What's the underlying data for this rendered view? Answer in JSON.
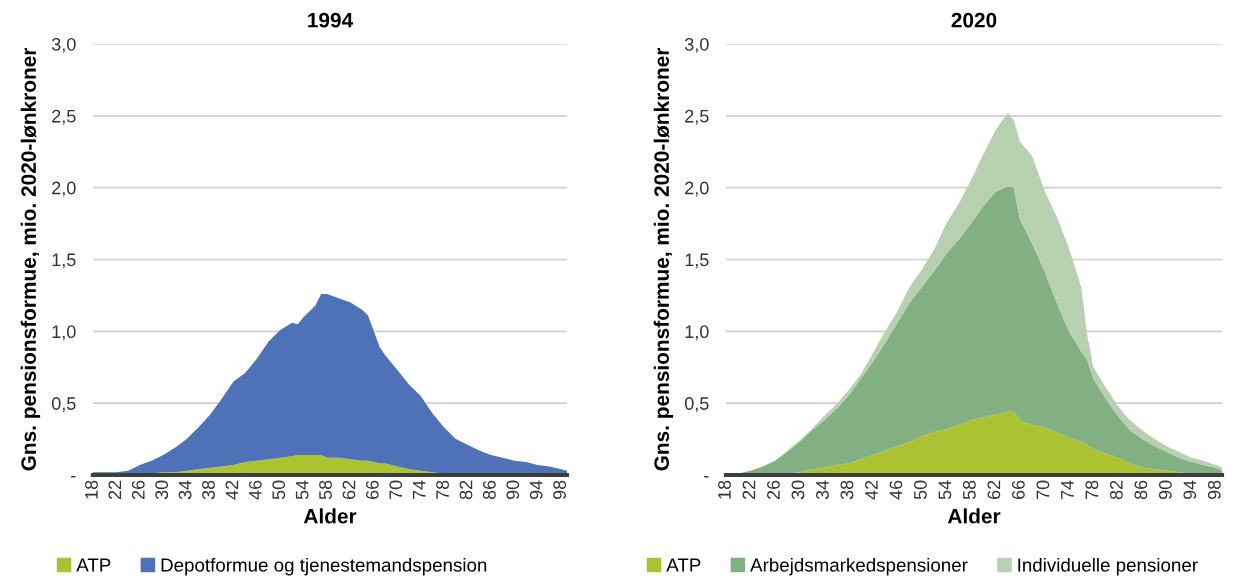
{
  "chart_data": [
    {
      "type": "area",
      "stacked": true,
      "title": "1994",
      "xlabel": "Alder",
      "ylabel": "Gns. pensionsformue, mio. 2020-lønkroner",
      "x": [
        18,
        20,
        22,
        24,
        26,
        28,
        30,
        32,
        34,
        36,
        38,
        40,
        42,
        44,
        46,
        48,
        50,
        52,
        53,
        54,
        56,
        57,
        58,
        60,
        62,
        64,
        65,
        66,
        67,
        68,
        70,
        72,
        74,
        76,
        78,
        80,
        82,
        84,
        86,
        88,
        90,
        92,
        94,
        96,
        98,
        99
      ],
      "series": [
        {
          "name": "ATP",
          "color": "#abc233",
          "values": [
            0,
            0,
            0,
            0,
            0.01,
            0.01,
            0.02,
            0.02,
            0.03,
            0.04,
            0.05,
            0.06,
            0.07,
            0.09,
            0.1,
            0.11,
            0.12,
            0.13,
            0.14,
            0.14,
            0.14,
            0.14,
            0.12,
            0.12,
            0.11,
            0.1,
            0.1,
            0.09,
            0.08,
            0.08,
            0.06,
            0.04,
            0.03,
            0.02,
            0.01,
            0.01,
            0,
            0,
            0,
            0,
            0,
            0,
            0,
            0,
            0,
            0
          ]
        },
        {
          "name": "Depotformue og tjenestemandspension",
          "color": "#4f71b8",
          "values": [
            0.02,
            0.02,
            0.02,
            0.03,
            0.06,
            0.09,
            0.12,
            0.17,
            0.22,
            0.29,
            0.37,
            0.47,
            0.58,
            0.62,
            0.71,
            0.82,
            0.89,
            0.93,
            0.91,
            0.96,
            1.04,
            1.12,
            1.14,
            1.11,
            1.09,
            1.05,
            1.01,
            0.91,
            0.81,
            0.75,
            0.67,
            0.59,
            0.52,
            0.41,
            0.32,
            0.24,
            0.21,
            0.17,
            0.14,
            0.12,
            0.1,
            0.09,
            0.07,
            0.06,
            0.04,
            0.03
          ]
        }
      ],
      "xlim": [
        18,
        99
      ],
      "xticks": [
        18,
        22,
        26,
        30,
        34,
        38,
        42,
        46,
        50,
        54,
        58,
        62,
        66,
        70,
        74,
        78,
        82,
        86,
        90,
        94,
        98
      ],
      "ylim": [
        0,
        3
      ],
      "yticks": [
        {
          "value": 0,
          "label": "-"
        },
        {
          "value": 0.5,
          "label": "0,5"
        },
        {
          "value": 1,
          "label": "1,0"
        },
        {
          "value": 1.5,
          "label": "1,5"
        },
        {
          "value": 2,
          "label": "2,0"
        },
        {
          "value": 2.5,
          "label": "2,5"
        },
        {
          "value": 3,
          "label": "3,0"
        }
      ],
      "grid": "y",
      "legend": "bottom"
    },
    {
      "type": "area",
      "stacked": true,
      "title": "2020",
      "xlabel": "Alder",
      "ylabel": "Gns. pensionsformue, mio. 2020-lønkroner",
      "x": [
        18,
        20,
        22,
        24,
        26,
        28,
        30,
        32,
        34,
        36,
        38,
        40,
        42,
        44,
        46,
        48,
        50,
        52,
        54,
        56,
        58,
        60,
        62,
        64,
        65,
        66,
        68,
        70,
        72,
        74,
        76,
        77,
        78,
        80,
        82,
        84,
        86,
        88,
        90,
        92,
        94,
        96,
        98,
        99
      ],
      "series": [
        {
          "name": "ATP",
          "color": "#abc233",
          "values": [
            0,
            0,
            0,
            0,
            0.01,
            0.01,
            0.02,
            0.04,
            0.05,
            0.07,
            0.08,
            0.11,
            0.14,
            0.17,
            0.2,
            0.23,
            0.27,
            0.3,
            0.32,
            0.35,
            0.38,
            0.4,
            0.42,
            0.44,
            0.44,
            0.38,
            0.35,
            0.33,
            0.3,
            0.26,
            0.23,
            0.21,
            0.18,
            0.15,
            0.12,
            0.08,
            0.05,
            0.04,
            0.03,
            0.02,
            0.01,
            0.01,
            0.01,
            0
          ]
        },
        {
          "name": "Arbejdsmarkedspensioner",
          "color": "#82b082",
          "values": [
            0.01,
            0.01,
            0.03,
            0.06,
            0.09,
            0.15,
            0.21,
            0.27,
            0.33,
            0.39,
            0.47,
            0.56,
            0.65,
            0.75,
            0.86,
            0.97,
            1.04,
            1.12,
            1.22,
            1.29,
            1.37,
            1.47,
            1.55,
            1.57,
            1.56,
            1.4,
            1.26,
            1.09,
            0.9,
            0.74,
            0.63,
            0.59,
            0.49,
            0.38,
            0.29,
            0.23,
            0.2,
            0.16,
            0.13,
            0.1,
            0.08,
            0.06,
            0.04,
            0.03
          ]
        },
        {
          "name": "Individuelle pensioner",
          "color": "#b7d1b0",
          "values": [
            0,
            0,
            0,
            0,
            0,
            0.01,
            0.01,
            0.01,
            0.03,
            0.03,
            0.04,
            0.03,
            0.06,
            0.08,
            0.08,
            0.11,
            0.12,
            0.15,
            0.21,
            0.25,
            0.3,
            0.36,
            0.43,
            0.51,
            0.47,
            0.54,
            0.61,
            0.56,
            0.6,
            0.58,
            0.45,
            0.17,
            0.08,
            0.08,
            0.07,
            0.07,
            0.06,
            0.05,
            0.04,
            0.04,
            0.03,
            0.03,
            0.02,
            0.02
          ]
        }
      ],
      "xlim": [
        18,
        99
      ],
      "xticks": [
        18,
        22,
        26,
        30,
        34,
        38,
        42,
        46,
        50,
        54,
        58,
        62,
        66,
        70,
        74,
        78,
        82,
        86,
        90,
        94,
        98
      ],
      "ylim": [
        0,
        3
      ],
      "yticks": [
        {
          "value": 0,
          "label": "-"
        },
        {
          "value": 0.5,
          "label": "0,5"
        },
        {
          "value": 1,
          "label": "1,0"
        },
        {
          "value": 1.5,
          "label": "1,5"
        },
        {
          "value": 2,
          "label": "2,0"
        },
        {
          "value": 2.5,
          "label": "2,5"
        },
        {
          "value": 3,
          "label": "3,0"
        }
      ],
      "grid": "y",
      "legend": "bottom"
    }
  ]
}
